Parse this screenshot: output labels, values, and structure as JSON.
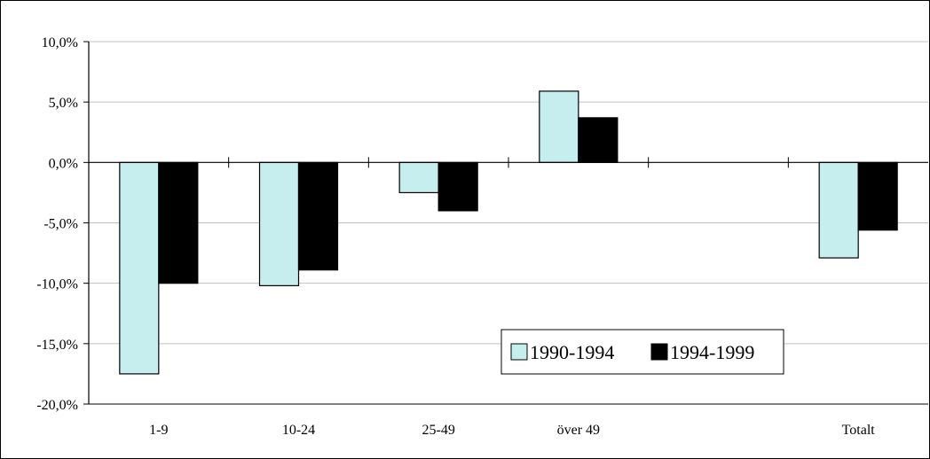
{
  "chart_data": {
    "type": "bar",
    "categories": [
      "1-9",
      "10-24",
      "25-49",
      "över 49",
      "",
      "Totalt"
    ],
    "series": [
      {
        "name": "1990-1994",
        "values": [
          -17.5,
          -10.2,
          -2.5,
          5.9,
          null,
          -7.9
        ],
        "color": "#c6eeee"
      },
      {
        "name": "1994-1999",
        "values": [
          -10.0,
          -8.9,
          -4.0,
          3.7,
          null,
          -5.6
        ],
        "color": "#000000"
      }
    ],
    "ylim": [
      -20,
      10
    ],
    "yticks": [
      10,
      5,
      0,
      -5,
      -10,
      -15,
      -20
    ],
    "ytick_labels": [
      "10,0%",
      "5,0%",
      "0,0%",
      "-5,0%",
      "-10,0%",
      "-15,0%",
      "-20,0%"
    ],
    "grid": true,
    "legend_position": "bottom-right",
    "title": "",
    "xlabel": "",
    "ylabel": ""
  },
  "colors": {
    "grid": "#c0c0c0",
    "axis": "#000000",
    "bar_outline": "#000000"
  }
}
